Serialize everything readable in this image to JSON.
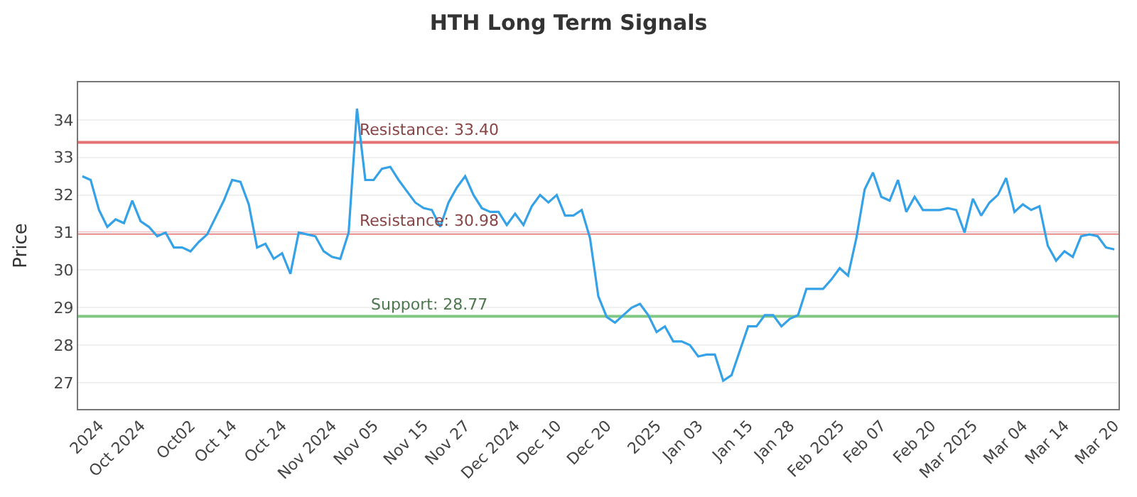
{
  "chart_data": {
    "type": "line",
    "title": "HTH Long Term Signals",
    "ylabel": "Price",
    "categories": [
      null,
      null,
      "2024",
      null,
      null,
      null,
      null,
      "Oct 2024",
      null,
      null,
      null,
      null,
      null,
      "Oct02",
      null,
      null,
      null,
      null,
      "Oct 14",
      null,
      null,
      null,
      null,
      null,
      "Oct 24",
      null,
      null,
      null,
      null,
      null,
      "Nov 2024",
      null,
      null,
      null,
      null,
      "Nov 05",
      null,
      null,
      null,
      null,
      null,
      "Nov 15",
      null,
      null,
      null,
      null,
      "Nov 27",
      null,
      null,
      null,
      null,
      null,
      "Dec 2024",
      null,
      null,
      null,
      null,
      "Dec 10",
      null,
      null,
      null,
      null,
      null,
      "Dec 20",
      null,
      null,
      null,
      null,
      null,
      "2025",
      null,
      null,
      null,
      null,
      "Jan 03",
      null,
      null,
      null,
      null,
      null,
      "Jan 15",
      null,
      null,
      null,
      null,
      "Jan 28",
      null,
      null,
      null,
      null,
      null,
      "Feb 2025",
      null,
      null,
      null,
      null,
      "Feb 07",
      null,
      null,
      null,
      null,
      null,
      "Feb 20",
      null,
      null,
      null,
      null,
      "Mar 2025",
      null,
      null,
      null,
      null,
      null,
      "Mar 04",
      null,
      null,
      null,
      null,
      "Mar 14",
      null,
      null,
      null,
      null,
      null,
      "Mar 20"
    ],
    "series": [
      {
        "color": "#35a2e8",
        "values": [
          32.5,
          32.4,
          31.6,
          31.15,
          31.35,
          31.25,
          31.85,
          31.3,
          31.15,
          30.9,
          31.0,
          30.6,
          30.6,
          30.5,
          30.75,
          30.95,
          31.4,
          31.85,
          32.4,
          32.35,
          31.75,
          30.6,
          30.7,
          30.3,
          30.45,
          29.9,
          31.0,
          30.95,
          30.9,
          30.5,
          30.35,
          30.3,
          31.0,
          34.3,
          32.4,
          32.4,
          32.7,
          32.75,
          32.4,
          32.1,
          31.8,
          31.65,
          31.6,
          31.15,
          31.8,
          32.2,
          32.5,
          32.0,
          31.65,
          31.55,
          31.55,
          31.2,
          31.5,
          31.2,
          31.7,
          32.0,
          31.8,
          32.0,
          31.45,
          31.45,
          31.6,
          30.85,
          29.3,
          28.75,
          28.6,
          28.8,
          29.0,
          29.1,
          28.8,
          28.35,
          28.5,
          28.1,
          28.1,
          28.0,
          27.7,
          27.75,
          27.75,
          27.05,
          27.2,
          27.85,
          28.5,
          28.5,
          28.8,
          28.8,
          28.5,
          28.7,
          28.8,
          29.5,
          29.5,
          29.5,
          29.75,
          30.05,
          29.85,
          30.85,
          32.15,
          32.6,
          31.95,
          31.85,
          32.4,
          31.55,
          31.95,
          31.6,
          31.6,
          31.6,
          31.65,
          31.6,
          31.0,
          31.9,
          31.45,
          31.8,
          32.0,
          32.45,
          31.55,
          31.75,
          31.6,
          31.7,
          30.65,
          30.25,
          30.5,
          30.35,
          30.9,
          30.95,
          30.9,
          30.6,
          30.55
        ]
      }
    ],
    "ylim": [
      26.3,
      35.0
    ],
    "yticks": [
      27,
      28,
      29,
      30,
      31,
      32,
      33,
      34
    ],
    "grid": "y",
    "marker": "none",
    "line_style": "solid",
    "ref_lines": [
      {
        "axis": "y",
        "value": 33.4,
        "label": "Resistance: 33.40",
        "color": "#e57373"
      },
      {
        "axis": "y",
        "value": 30.98,
        "label": "Resistance: 30.98",
        "color": "#e57373"
      },
      {
        "axis": "y",
        "value": 28.77,
        "label": "Support: 28.77",
        "color": "#81c784"
      }
    ]
  }
}
